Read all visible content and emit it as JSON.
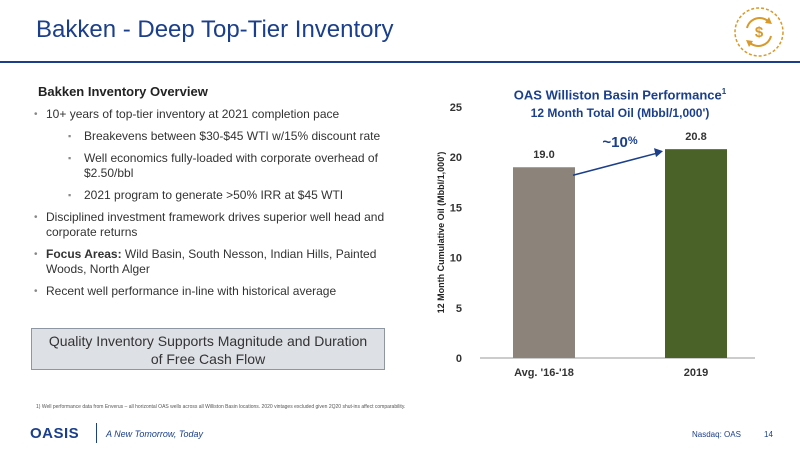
{
  "header": {
    "title": "Bakken - Deep Top-Tier Inventory"
  },
  "left": {
    "heading": "Bakken Inventory Overview",
    "bullets": {
      "b1": "10+ years of top-tier inventory at 2021 completion pace",
      "b1a": "Breakevens between $30-$45 WTI w/15% discount rate",
      "b1b": "Well economics fully-loaded with corporate overhead of $2.50/bbl",
      "b1c": "2021 program to generate >50% IRR at $45 WTI",
      "b2": "Disciplined investment framework drives superior well head and corporate returns",
      "b3_label": "Focus Areas:",
      "b3_text": " Wild Basin, South Nesson, Indian Hills, Painted Woods, North Alger",
      "b4": "Recent well performance in-line with historical average"
    }
  },
  "callout": {
    "line1": "Quality Inventory Supports Magnitude and Duration",
    "line2": "of Free Cash Flow"
  },
  "chart_data": {
    "type": "bar",
    "title": "OAS Williston Basin Performance",
    "title_footnote": "1",
    "subtitle": "12 Month Total Oil (Mbbl/1,000')",
    "ylabel": "12 Month Cumulative Oil (Mbbl/1,000')",
    "categories": [
      "Avg. '16-'18",
      "2019"
    ],
    "values": [
      19.0,
      20.8
    ],
    "value_labels": [
      "19.0",
      "20.8"
    ],
    "colors": [
      "#8c847a",
      "#4a6228"
    ],
    "ylim": [
      0,
      25
    ],
    "yticks": [
      0,
      5,
      10,
      15,
      20,
      25
    ],
    "annotation": {
      "text": "~10",
      "suffix": "%"
    }
  },
  "footer": {
    "footnote": "1)   Well performance data from Enverus – all horizontal OAS wells across all Williston Basin locations. 2020 vintages excluded given 2Q20 shut-ins affect comparability.",
    "logo": "OASIS",
    "tagline": "A New Tomorrow, Today",
    "ticker": "Nasdaq: OAS",
    "page": "14"
  },
  "colors": {
    "brand": "#1b3f8b",
    "gold": "#d89a2a"
  },
  "icons": {
    "badge": "dollar-cycle-icon"
  }
}
